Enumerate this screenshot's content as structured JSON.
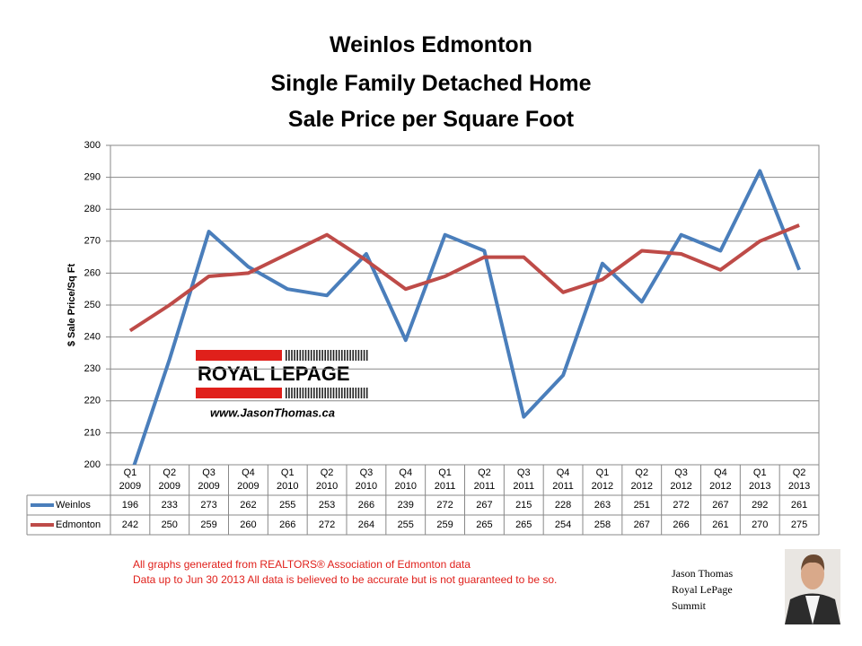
{
  "chart_data": {
    "type": "line",
    "title_lines": [
      "Weinlos Edmonton",
      "Single Family Detached Home",
      "Sale Price per Square Foot"
    ],
    "y_label": "$ Sale Price/Sq Ft",
    "categories": [
      "Q1 2009",
      "Q2 2009",
      "Q3 2009",
      "Q4 2009",
      "Q1 2010",
      "Q2 2010",
      "Q3 2010",
      "Q4 2010",
      "Q1 2011",
      "Q2 2011",
      "Q3 2011",
      "Q4 2011",
      "Q1 2012",
      "Q2 2012",
      "Q3 2012",
      "Q4 2012",
      "Q1 2013",
      "Q2 2013"
    ],
    "series": [
      {
        "name": "Weinlos",
        "color": "#4a7ebb",
        "values": [
          196,
          233,
          273,
          262,
          255,
          253,
          266,
          239,
          272,
          267,
          215,
          228,
          263,
          251,
          272,
          267,
          292,
          261
        ]
      },
      {
        "name": "Edmonton",
        "color": "#be4b48",
        "values": [
          242,
          250,
          259,
          260,
          266,
          272,
          264,
          255,
          259,
          265,
          265,
          254,
          258,
          267,
          266,
          261,
          270,
          275
        ]
      }
    ],
    "ylim": [
      200,
      300
    ],
    "yticks": [
      200,
      210,
      220,
      230,
      240,
      250,
      260,
      270,
      280,
      290,
      300
    ],
    "grid": true
  },
  "logo": {
    "brand": "ROYAL LEPAGE",
    "url": "www.JasonThomas.ca"
  },
  "footnotes": [
    "All graphs generated from REALTORS® Association of Edmonton data",
    "Data up to  Jun 30 2013  All data is believed to be accurate but is not guaranteed to be so."
  ],
  "signature": [
    "Jason Thomas",
    "Royal LePage",
    "Summit"
  ]
}
